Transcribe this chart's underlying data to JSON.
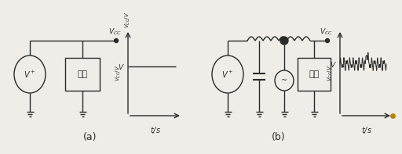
{
  "bg_color": "#f0ede8",
  "line_color": "#2a2a2a",
  "label_a": "(a)",
  "label_b": "(b)",
  "vcc_label": "$V_{CC}$",
  "v_label": "$V$",
  "vcc_v_label": "$V_{CC}/V$",
  "t_label": "$t$/s",
  "fuhao_label": "负荷",
  "vplus_label": "$V^+$",
  "vminus_label": "~",
  "white": "#ffffff"
}
